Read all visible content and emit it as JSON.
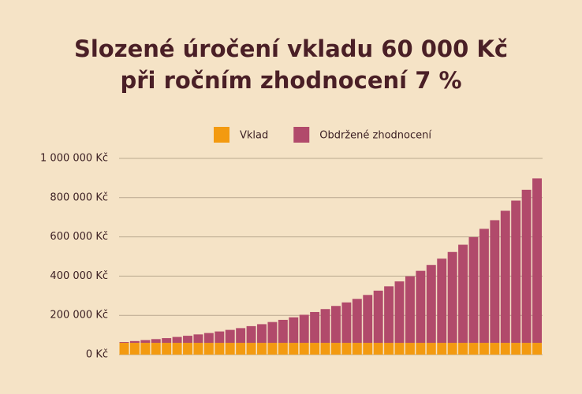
{
  "chart_data": {
    "type": "stacked_bar",
    "title": [
      "Slozené úročení vkladu 60 000 Kč",
      "při ročním zhodnocení 7 %"
    ],
    "categories": [
      null,
      null,
      null,
      null,
      null,
      null,
      null,
      null,
      null,
      null,
      null,
      null,
      null,
      null,
      null,
      null,
      null,
      null,
      null,
      null,
      null,
      null,
      null,
      null,
      null,
      null,
      null,
      null,
      null,
      null,
      null,
      null,
      null,
      null,
      null,
      null,
      null,
      null,
      null,
      null
    ],
    "series": [
      {
        "name": "Vklad",
        "color": "#f39a10",
        "values": [
          60000,
          60000,
          60000,
          60000,
          60000,
          60000,
          60000,
          60000,
          60000,
          60000,
          60000,
          60000,
          60000,
          60000,
          60000,
          60000,
          60000,
          60000,
          60000,
          60000,
          60000,
          60000,
          60000,
          60000,
          60000,
          60000,
          60000,
          60000,
          60000,
          60000,
          60000,
          60000,
          60000,
          60000,
          60000,
          60000,
          60000,
          60000,
          60000,
          60000
        ]
      },
      {
        "name": "Obdržené zhodnocení",
        "color": "#b14a6b",
        "values": [
          4000,
          9000,
          14000,
          19000,
          24000,
          30000,
          36000,
          43000,
          50000,
          58000,
          66000,
          75000,
          85000,
          95000,
          106000,
          117000,
          130000,
          143000,
          157000,
          172000,
          188000,
          206000,
          224000,
          244000,
          266000,
          288000,
          313000,
          339000,
          367000,
          397000,
          429000,
          463000,
          500000,
          539000,
          581000,
          625000,
          673000,
          725000,
          780000,
          838000
        ]
      }
    ],
    "ylim": [
      0,
      1000000
    ],
    "yticks": [
      {
        "value": 0,
        "label": "0 Kč"
      },
      {
        "value": 200000,
        "label": "200 000 Kč"
      },
      {
        "value": 400000,
        "label": "400 000 Kč"
      },
      {
        "value": 600000,
        "label": "600 000 Kč"
      },
      {
        "value": 800000,
        "label": "800 000 Kč"
      },
      {
        "value": 1000000,
        "label": "1 000 000 Kč"
      }
    ],
    "grid": true,
    "legend": "top"
  }
}
